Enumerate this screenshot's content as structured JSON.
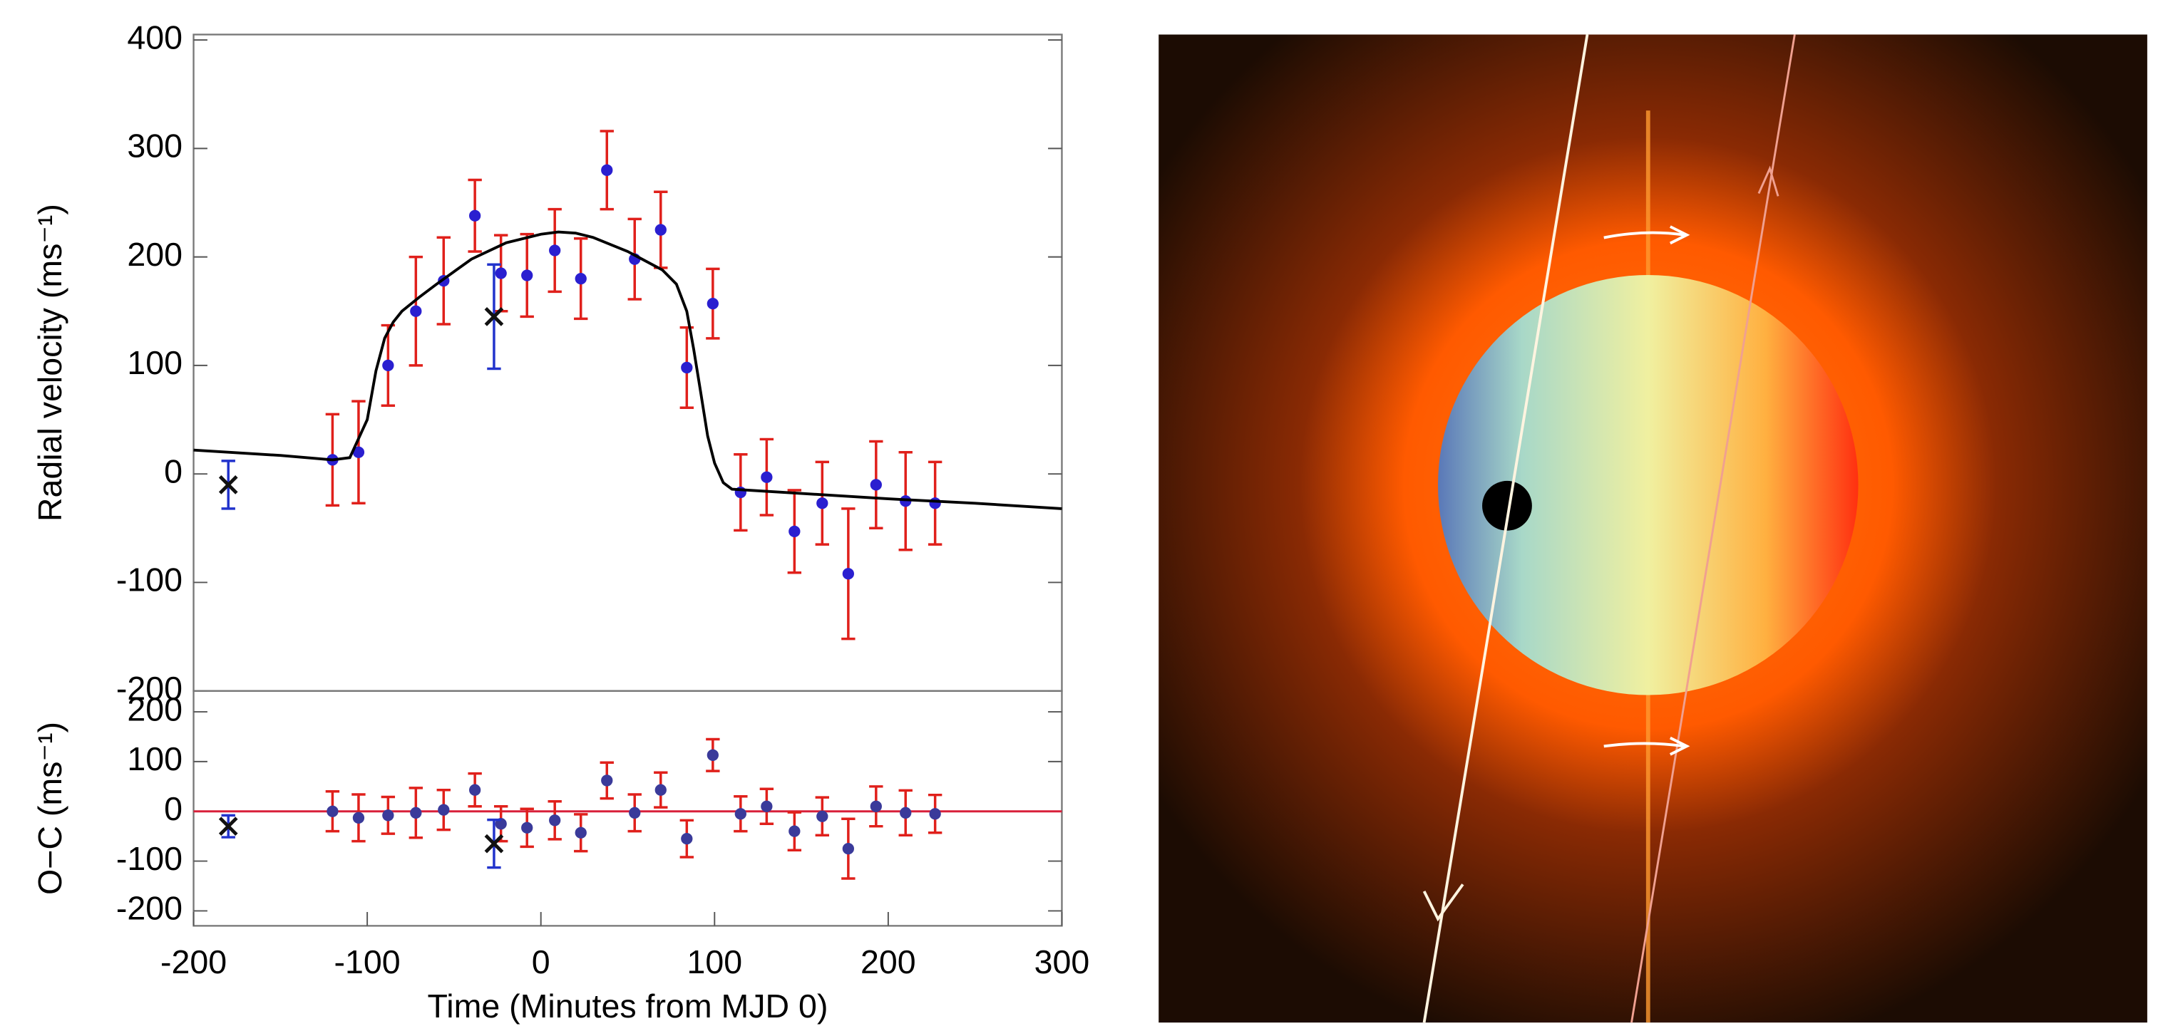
{
  "chart_data": [
    {
      "type": "errorbar",
      "y_label": "Radial velocity (ms⁻¹)",
      "xlim": [
        -200,
        300
      ],
      "ylim": [
        -200,
        405
      ],
      "yticks": [
        -200,
        -100,
        0,
        100,
        200,
        300,
        400
      ],
      "series": [
        {
          "type": "errorbar",
          "color": "#e0201b",
          "marker_color": "#2a1fd0",
          "marker": "dot",
          "x": [
            -120,
            -105,
            -88,
            -72,
            -56,
            -38,
            -23,
            -8,
            8,
            23,
            38,
            54,
            69,
            84,
            99,
            115,
            130,
            146,
            162,
            177,
            193,
            210,
            227
          ],
          "values": [
            13,
            20,
            100,
            150,
            178,
            238,
            185,
            183,
            206,
            180,
            280,
            198,
            225,
            98,
            157,
            -17,
            -3,
            -53,
            -27,
            -92,
            -10,
            -25,
            -27
          ],
          "errors": [
            42,
            47,
            37,
            50,
            40,
            33,
            35,
            38,
            38,
            37,
            36,
            37,
            35,
            37,
            32,
            35,
            35,
            38,
            38,
            60,
            40,
            45,
            38
          ]
        },
        {
          "type": "errorbar",
          "color": "#2233cc",
          "marker_color": "#111111",
          "marker": "cross",
          "x": [
            -180,
            -27
          ],
          "values": [
            -10,
            145
          ],
          "errors": [
            22,
            48
          ]
        },
        {
          "type": "line",
          "color": "#000000",
          "x": [
            -200,
            -150,
            -120,
            -110,
            -100,
            -95,
            -90,
            -85,
            -80,
            -70,
            -60,
            -40,
            -20,
            0,
            10,
            20,
            30,
            50,
            70,
            78,
            84,
            88,
            92,
            96,
            100,
            105,
            110,
            150,
            200,
            250,
            300
          ],
          "values": [
            22,
            17,
            13,
            15,
            50,
            95,
            125,
            140,
            150,
            163,
            175,
            198,
            213,
            221,
            223,
            222,
            218,
            205,
            188,
            175,
            150,
            115,
            75,
            35,
            10,
            -8,
            -14,
            -18,
            -23,
            -27,
            -32
          ]
        }
      ]
    },
    {
      "type": "errorbar",
      "y_label": "O−C (ms⁻¹)",
      "x_label": "Time (Minutes from MJD 0)",
      "xlim": [
        -200,
        300
      ],
      "ylim": [
        -230,
        242
      ],
      "xticks": [
        -200,
        -100,
        0,
        100,
        200,
        300
      ],
      "yticks": [
        -200,
        -100,
        0,
        100,
        200
      ],
      "zero_line_color": "#d8203a",
      "series": [
        {
          "type": "errorbar",
          "color": "#e0201b",
          "marker_color": "#3a3a9a",
          "marker": "dot",
          "x": [
            -120,
            -105,
            -88,
            -72,
            -56,
            -38,
            -23,
            -8,
            8,
            23,
            38,
            54,
            69,
            84,
            99,
            115,
            130,
            146,
            162,
            177,
            193,
            210,
            227
          ],
          "values": [
            0,
            -13,
            -8,
            -3,
            3,
            43,
            -25,
            -33,
            -18,
            -43,
            62,
            -3,
            43,
            -55,
            113,
            -5,
            10,
            -40,
            -10,
            -75,
            10,
            -3,
            -5
          ],
          "errors": [
            40,
            47,
            37,
            50,
            40,
            33,
            35,
            38,
            38,
            37,
            36,
            37,
            35,
            37,
            32,
            35,
            35,
            38,
            38,
            60,
            40,
            45,
            38
          ]
        },
        {
          "type": "errorbar",
          "color": "#2233cc",
          "marker_color": "#111111",
          "marker": "cross",
          "x": [
            -180,
            -27
          ],
          "values": [
            -30,
            -65
          ],
          "errors": [
            22,
            48
          ]
        }
      ]
    }
  ]
}
